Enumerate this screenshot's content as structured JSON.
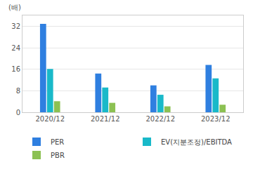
{
  "chart_data": {
    "type": "bar",
    "ylabel": "(배)",
    "categories": [
      "2020/12",
      "2021/12",
      "2022/12",
      "2023/12"
    ],
    "series": [
      {
        "name": "PER",
        "color": "#2f7fe0",
        "values": [
          32.9,
          14.4,
          10.0,
          17.6
        ]
      },
      {
        "name": "EV(지분조정)/EBITDA",
        "color": "#19b9c9",
        "values": [
          16.1,
          9.2,
          6.5,
          12.6
        ]
      },
      {
        "name": "PBR",
        "color": "#8cc153",
        "values": [
          4.1,
          3.5,
          2.2,
          2.8
        ]
      }
    ],
    "ylim": [
      0,
      36
    ],
    "yticks": [
      0,
      8,
      16,
      24,
      32
    ],
    "grid": true,
    "legend": "bottom"
  }
}
